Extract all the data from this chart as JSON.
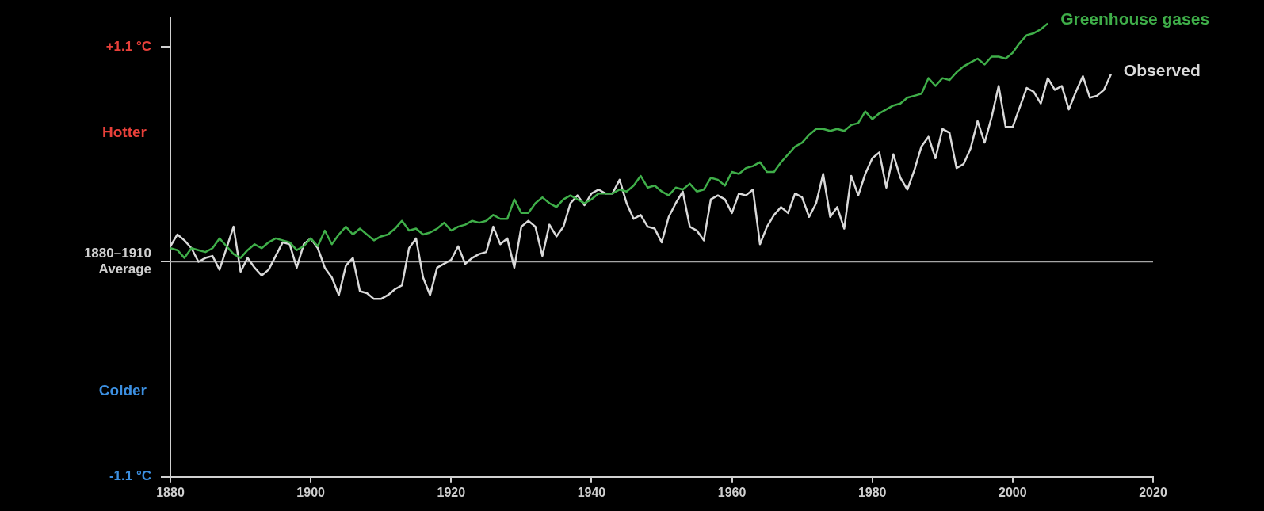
{
  "chart_data": {
    "type": "line",
    "annotations": [
      "Hotter",
      "Colder"
    ],
    "x": [
      1880,
      1881,
      1882,
      1883,
      1884,
      1885,
      1886,
      1887,
      1888,
      1889,
      1890,
      1891,
      1892,
      1893,
      1894,
      1895,
      1896,
      1897,
      1898,
      1899,
      1900,
      1901,
      1902,
      1903,
      1904,
      1905,
      1906,
      1907,
      1908,
      1909,
      1910,
      1911,
      1912,
      1913,
      1914,
      1915,
      1916,
      1917,
      1918,
      1919,
      1920,
      1921,
      1922,
      1923,
      1924,
      1925,
      1926,
      1927,
      1928,
      1929,
      1930,
      1931,
      1932,
      1933,
      1934,
      1935,
      1936,
      1937,
      1938,
      1939,
      1940,
      1941,
      1942,
      1943,
      1944,
      1945,
      1946,
      1947,
      1948,
      1949,
      1950,
      1951,
      1952,
      1953,
      1954,
      1955,
      1956,
      1957,
      1958,
      1959,
      1960,
      1961,
      1962,
      1963,
      1964,
      1965,
      1966,
      1967,
      1968,
      1969,
      1970,
      1971,
      1972,
      1973,
      1974,
      1975,
      1976,
      1977,
      1978,
      1979,
      1980,
      1981,
      1982,
      1983,
      1984,
      1985,
      1986,
      1987,
      1988,
      1989,
      1990,
      1991,
      1992,
      1993,
      1994,
      1995,
      1996,
      1997,
      1998,
      1999,
      2000,
      2001,
      2002,
      2003,
      2004,
      2005,
      2006,
      2007,
      2008,
      2009,
      2010,
      2011,
      2012,
      2013,
      2014
    ],
    "series": [
      {
        "name": "Greenhouse gases",
        "color": "#3fae49",
        "values": [
          0.07,
          0.06,
          0.02,
          0.07,
          0.06,
          0.05,
          0.07,
          0.12,
          0.08,
          0.04,
          0.02,
          0.06,
          0.09,
          0.07,
          0.1,
          0.12,
          0.11,
          0.1,
          0.06,
          0.08,
          0.12,
          0.08,
          0.16,
          0.09,
          0.14,
          0.18,
          0.14,
          0.17,
          0.14,
          0.11,
          0.13,
          0.14,
          0.17,
          0.21,
          0.16,
          0.17,
          0.14,
          0.15,
          0.17,
          0.2,
          0.16,
          0.18,
          0.19,
          0.21,
          0.2,
          0.21,
          0.24,
          0.22,
          0.22,
          0.32,
          0.25,
          0.25,
          0.3,
          0.33,
          0.3,
          0.28,
          0.32,
          0.34,
          0.32,
          0.3,
          0.32,
          0.35,
          0.35,
          0.35,
          0.37,
          0.36,
          0.39,
          0.44,
          0.38,
          0.39,
          0.36,
          0.34,
          0.38,
          0.37,
          0.4,
          0.36,
          0.37,
          0.43,
          0.42,
          0.39,
          0.46,
          0.45,
          0.48,
          0.49,
          0.51,
          0.46,
          0.46,
          0.51,
          0.55,
          0.59,
          0.61,
          0.65,
          0.68,
          0.68,
          0.67,
          0.68,
          0.67,
          0.7,
          0.71,
          0.77,
          0.73,
          0.76,
          0.78,
          0.8,
          0.81,
          0.84,
          0.85,
          0.86,
          0.94,
          0.9,
          0.94,
          0.93,
          0.97,
          1.0,
          1.02,
          1.04,
          1.01,
          1.05,
          1.05,
          1.04,
          1.07,
          1.12,
          1.16,
          1.17,
          1.19,
          1.22,
          null,
          null,
          null,
          null,
          null,
          null,
          null,
          null,
          null
        ]
      },
      {
        "name": "Observed",
        "color": "#d9d9d9",
        "values": [
          0.08,
          0.14,
          0.11,
          0.07,
          0.0,
          0.02,
          0.03,
          -0.04,
          0.07,
          0.18,
          -0.05,
          0.02,
          -0.03,
          -0.07,
          -0.04,
          0.03,
          0.1,
          0.09,
          -0.03,
          0.09,
          0.12,
          0.07,
          -0.03,
          -0.08,
          -0.17,
          -0.02,
          0.02,
          -0.15,
          -0.16,
          -0.19,
          -0.19,
          -0.17,
          -0.14,
          -0.12,
          0.07,
          0.12,
          -0.08,
          -0.17,
          -0.03,
          -0.01,
          0.01,
          0.08,
          -0.01,
          0.02,
          0.04,
          0.05,
          0.18,
          0.09,
          0.12,
          -0.03,
          0.18,
          0.21,
          0.18,
          0.03,
          0.19,
          0.13,
          0.18,
          0.3,
          0.34,
          0.29,
          0.35,
          0.37,
          0.35,
          0.35,
          0.42,
          0.3,
          0.22,
          0.24,
          0.18,
          0.17,
          0.1,
          0.23,
          0.3,
          0.36,
          0.18,
          0.16,
          0.11,
          0.32,
          0.34,
          0.32,
          0.25,
          0.35,
          0.34,
          0.37,
          0.09,
          0.18,
          0.24,
          0.28,
          0.25,
          0.35,
          0.33,
          0.23,
          0.3,
          0.45,
          0.23,
          0.28,
          0.17,
          0.44,
          0.34,
          0.45,
          0.53,
          0.56,
          0.38,
          0.55,
          0.43,
          0.37,
          0.47,
          0.59,
          0.64,
          0.53,
          0.68,
          0.66,
          0.48,
          0.5,
          0.58,
          0.72,
          0.61,
          0.74,
          0.9,
          0.69,
          0.69,
          0.79,
          0.89,
          0.87,
          0.81,
          0.94,
          0.88,
          0.9,
          0.78,
          0.87,
          0.95,
          0.84,
          0.85,
          0.88,
          0.96
        ]
      }
    ],
    "xlim": [
      1880,
      2020
    ],
    "xticks": [
      1880,
      1900,
      1920,
      1940,
      1960,
      1980,
      2000,
      2020
    ],
    "ylim": [
      -1.1,
      1.25
    ],
    "yticks": [
      {
        "value": 1.1,
        "label": "+1.1 °C"
      },
      {
        "value": 0,
        "label": "1880–1910 Average"
      },
      {
        "value": -1.1,
        "label": "-1.1 °C"
      }
    ],
    "ref_lines": [
      {
        "axis": "y",
        "value": 0,
        "color": "#a6a6a6"
      }
    ],
    "grid": false,
    "legend": false,
    "marker": "none",
    "line_style": "solid"
  }
}
